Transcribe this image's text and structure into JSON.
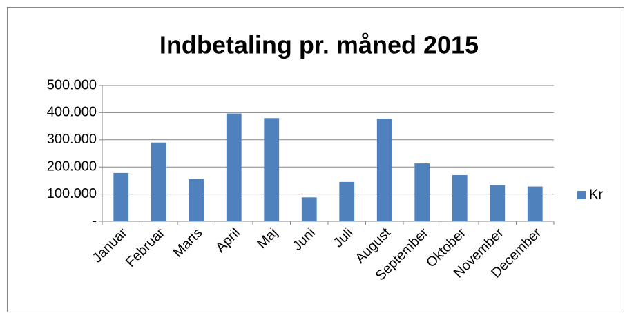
{
  "chart_data": {
    "type": "bar",
    "title": "Indbetaling pr. måned 2015",
    "categories": [
      "Januar",
      "Februar",
      "Marts",
      "April",
      "Maj",
      "Juni",
      "Juli",
      "August",
      "September",
      "Oktober",
      "November",
      "December"
    ],
    "series": [
      {
        "name": "Kr",
        "color": "#4f81bd",
        "values": [
          178000,
          290000,
          155000,
          397000,
          380000,
          88000,
          145000,
          378000,
          213000,
          170000,
          133000,
          128000
        ]
      }
    ],
    "ylim": [
      0,
      500000
    ],
    "yticks": [
      {
        "value": 0,
        "label": "-"
      },
      {
        "value": 100000,
        "label": "100.000"
      },
      {
        "value": 200000,
        "label": "200.000"
      },
      {
        "value": 300000,
        "label": "300.000"
      },
      {
        "value": 400000,
        "label": "400.000"
      },
      {
        "value": 500000,
        "label": "500.000"
      }
    ],
    "grid": true,
    "legend": "right"
  }
}
